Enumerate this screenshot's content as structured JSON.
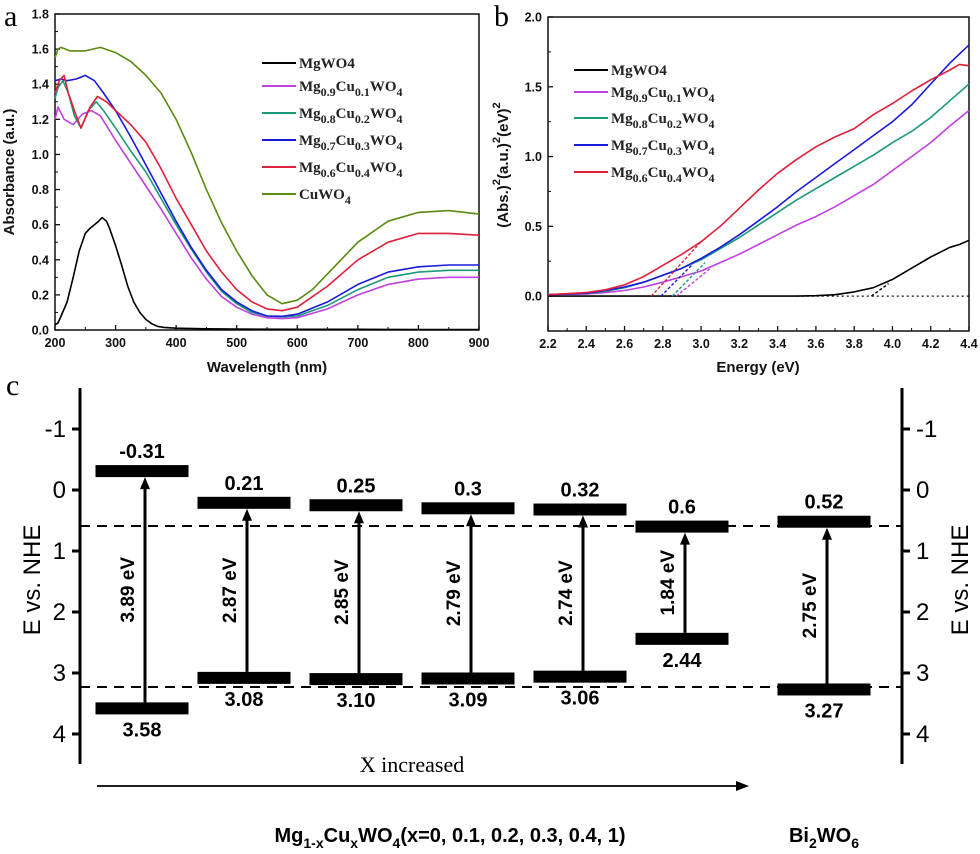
{
  "chart_data": [
    {
      "panel": "a",
      "type": "line",
      "xlabel": "Wavelength (nm)",
      "ylabel": "Absorbance (a.u.)",
      "xlim": [
        200,
        900
      ],
      "ylim": [
        0,
        1.8
      ],
      "xticks": [
        200,
        300,
        400,
        500,
        600,
        700,
        800,
        900
      ],
      "yticks": [
        "0.0",
        "0.2",
        "0.4",
        "0.6",
        "0.8",
        "1.0",
        "1.2",
        "1.4",
        "1.6",
        "1.8"
      ],
      "legend_position": "top-right",
      "series": [
        {
          "name": "MgWO4",
          "subscript": false,
          "color": "#000000",
          "x": [
            200,
            205,
            210,
            220,
            230,
            240,
            250,
            258,
            265,
            272,
            278,
            285,
            290,
            300,
            310,
            320,
            330,
            340,
            350,
            360,
            370,
            380,
            400,
            450,
            500,
            600,
            700,
            800,
            900
          ],
          "y": [
            0.03,
            0.04,
            0.08,
            0.16,
            0.3,
            0.45,
            0.55,
            0.58,
            0.6,
            0.62,
            0.64,
            0.62,
            0.58,
            0.48,
            0.37,
            0.25,
            0.16,
            0.1,
            0.06,
            0.035,
            0.02,
            0.015,
            0.01,
            0.007,
            0.005,
            0.004,
            0.004,
            0.003,
            0.003
          ]
        },
        {
          "name": "Mg0.9Cu0.1WO4",
          "subscript": true,
          "color": "#c040e0",
          "x": [
            200,
            205,
            215,
            230,
            245,
            260,
            275,
            300,
            325,
            350,
            375,
            400,
            425,
            450,
            475,
            500,
            525,
            550,
            575,
            600,
            650,
            700,
            750,
            800,
            850,
            900
          ],
          "y": [
            1.2,
            1.27,
            1.2,
            1.17,
            1.23,
            1.25,
            1.22,
            1.08,
            0.95,
            0.82,
            0.69,
            0.55,
            0.41,
            0.29,
            0.19,
            0.13,
            0.09,
            0.07,
            0.065,
            0.07,
            0.12,
            0.2,
            0.26,
            0.29,
            0.3,
            0.3
          ]
        },
        {
          "name": "Mg0.8Cu0.2WO4",
          "subscript": true,
          "color": "#1a9a7a",
          "x": [
            200,
            205,
            213,
            222,
            232,
            243,
            255,
            268,
            280,
            300,
            325,
            350,
            375,
            400,
            425,
            450,
            475,
            500,
            525,
            550,
            575,
            600,
            650,
            700,
            750,
            800,
            850,
            900
          ],
          "y": [
            1.32,
            1.38,
            1.42,
            1.35,
            1.22,
            1.15,
            1.25,
            1.3,
            1.25,
            1.15,
            1.02,
            0.9,
            0.75,
            0.6,
            0.46,
            0.33,
            0.22,
            0.15,
            0.1,
            0.08,
            0.075,
            0.08,
            0.14,
            0.23,
            0.3,
            0.33,
            0.34,
            0.34
          ]
        },
        {
          "name": "Mg0.7Cu0.3WO4",
          "subscript": true,
          "color": "#1a1adc",
          "x": [
            200,
            210,
            220,
            235,
            250,
            265,
            280,
            300,
            325,
            350,
            375,
            400,
            425,
            450,
            475,
            500,
            525,
            550,
            575,
            600,
            650,
            700,
            750,
            800,
            850,
            900
          ],
          "y": [
            1.42,
            1.43,
            1.42,
            1.43,
            1.45,
            1.42,
            1.35,
            1.25,
            1.1,
            0.94,
            0.78,
            0.62,
            0.47,
            0.34,
            0.23,
            0.16,
            0.11,
            0.08,
            0.078,
            0.09,
            0.16,
            0.26,
            0.33,
            0.36,
            0.37,
            0.37
          ]
        },
        {
          "name": "Mg0.6Cu0.4WO4",
          "subscript": true,
          "color": "#e0203a",
          "x": [
            200,
            207,
            215,
            222,
            232,
            243,
            258,
            270,
            285,
            300,
            325,
            350,
            375,
            400,
            425,
            450,
            475,
            500,
            525,
            550,
            575,
            600,
            650,
            700,
            750,
            800,
            850,
            900
          ],
          "y": [
            1.35,
            1.42,
            1.45,
            1.35,
            1.25,
            1.15,
            1.27,
            1.33,
            1.3,
            1.25,
            1.17,
            1.07,
            0.92,
            0.75,
            0.6,
            0.45,
            0.33,
            0.23,
            0.16,
            0.12,
            0.11,
            0.13,
            0.25,
            0.4,
            0.5,
            0.55,
            0.55,
            0.54
          ]
        },
        {
          "name": "CuWO4",
          "subscript": true,
          "color": "#5a8a10",
          "x": [
            200,
            205,
            210,
            225,
            250,
            275,
            300,
            325,
            350,
            375,
            400,
            425,
            450,
            475,
            500,
            525,
            550,
            575,
            600,
            625,
            650,
            700,
            750,
            800,
            850,
            900
          ],
          "y": [
            1.55,
            1.6,
            1.61,
            1.59,
            1.59,
            1.61,
            1.58,
            1.53,
            1.45,
            1.35,
            1.2,
            1.01,
            0.8,
            0.61,
            0.45,
            0.31,
            0.2,
            0.15,
            0.17,
            0.23,
            0.32,
            0.5,
            0.62,
            0.67,
            0.68,
            0.66
          ]
        }
      ]
    },
    {
      "panel": "b",
      "type": "line",
      "xlabel": "Energy (eV)",
      "ylabel": "(Abs.)2(a.u.)2(eV)2",
      "xlim": [
        2.2,
        4.4
      ],
      "ylim": [
        -0.25,
        2.0
      ],
      "xticks": [
        "2.2",
        "2.4",
        "2.6",
        "2.8",
        "3.0",
        "3.2",
        "3.4",
        "3.6",
        "3.8",
        "4.0",
        "4.2",
        "4.4"
      ],
      "yticks": [
        "0.0",
        "0.5",
        "1.0",
        "1.5",
        "2.0"
      ],
      "legend_position": "top-left",
      "baseline": {
        "y": 0,
        "x": [
          3.5,
          4.4
        ],
        "style": "dotted"
      },
      "series": [
        {
          "name": "MgWO4",
          "subscript": false,
          "color": "#000000",
          "x": [
            2.2,
            3.5,
            3.6,
            3.7,
            3.8,
            3.9,
            4.0,
            4.1,
            4.2,
            4.3,
            4.35,
            4.4
          ],
          "y": [
            0,
            0,
            0.003,
            0.01,
            0.03,
            0.06,
            0.12,
            0.2,
            0.28,
            0.35,
            0.37,
            0.4
          ],
          "tangent": {
            "x": [
              3.89,
              3.98
            ],
            "y": [
              0,
              0.09
            ]
          }
        },
        {
          "name": "Mg0.9Cu0.1WO4",
          "subscript": true,
          "color": "#c040e0",
          "x": [
            2.2,
            2.4,
            2.5,
            2.6,
            2.7,
            2.8,
            2.9,
            3.0,
            3.1,
            3.2,
            3.3,
            3.4,
            3.5,
            3.6,
            3.7,
            3.8,
            3.9,
            4.0,
            4.1,
            4.2,
            4.3,
            4.4
          ],
          "y": [
            0.01,
            0.015,
            0.025,
            0.04,
            0.065,
            0.1,
            0.14,
            0.18,
            0.24,
            0.3,
            0.37,
            0.44,
            0.51,
            0.57,
            0.64,
            0.72,
            0.8,
            0.9,
            1.0,
            1.1,
            1.22,
            1.33
          ],
          "tangent": {
            "x": [
              2.87,
              3.05
            ],
            "y": [
              0,
              0.2
            ]
          }
        },
        {
          "name": "Mg0.8Cu0.2WO4",
          "subscript": true,
          "color": "#1a9a7a",
          "x": [
            2.2,
            2.4,
            2.5,
            2.6,
            2.7,
            2.8,
            2.9,
            3.0,
            3.1,
            3.2,
            3.3,
            3.4,
            3.5,
            3.6,
            3.7,
            3.8,
            3.9,
            4.0,
            4.1,
            4.2,
            4.3,
            4.4
          ],
          "y": [
            0.01,
            0.02,
            0.035,
            0.06,
            0.1,
            0.15,
            0.2,
            0.26,
            0.34,
            0.42,
            0.51,
            0.6,
            0.69,
            0.77,
            0.85,
            0.93,
            1.01,
            1.1,
            1.18,
            1.28,
            1.4,
            1.52
          ],
          "tangent": {
            "x": [
              2.85,
              3.02
            ],
            "y": [
              0,
              0.24
            ]
          }
        },
        {
          "name": "Mg0.7Cu0.3WO4",
          "subscript": true,
          "color": "#1a1adc",
          "x": [
            2.2,
            2.4,
            2.5,
            2.6,
            2.7,
            2.8,
            2.9,
            3.0,
            3.1,
            3.2,
            3.3,
            3.4,
            3.5,
            3.6,
            3.7,
            3.8,
            3.9,
            4.0,
            4.1,
            4.2,
            4.3,
            4.4
          ],
          "y": [
            0.01,
            0.02,
            0.04,
            0.065,
            0.1,
            0.15,
            0.2,
            0.27,
            0.35,
            0.44,
            0.54,
            0.64,
            0.75,
            0.85,
            0.95,
            1.05,
            1.15,
            1.25,
            1.37,
            1.52,
            1.67,
            1.8
          ],
          "tangent": {
            "x": [
              2.79,
              2.95
            ],
            "y": [
              0,
              0.22
            ]
          }
        },
        {
          "name": "Mg0.6Cu0.4WO4",
          "subscript": true,
          "color": "#e0203a",
          "x": [
            2.2,
            2.4,
            2.5,
            2.6,
            2.7,
            2.8,
            2.9,
            3.0,
            3.1,
            3.2,
            3.3,
            3.4,
            3.5,
            3.6,
            3.7,
            3.8,
            3.9,
            4.0,
            4.1,
            4.2,
            4.3,
            4.35,
            4.4
          ],
          "y": [
            0.01,
            0.025,
            0.045,
            0.08,
            0.14,
            0.22,
            0.3,
            0.39,
            0.5,
            0.63,
            0.76,
            0.88,
            0.98,
            1.07,
            1.14,
            1.2,
            1.3,
            1.38,
            1.47,
            1.55,
            1.62,
            1.66,
            1.65
          ],
          "tangent": {
            "x": [
              2.74,
              3.0
            ],
            "y": [
              0,
              0.39
            ]
          }
        }
      ]
    },
    {
      "panel": "c",
      "type": "band-diagram",
      "ylabel": "E vs. NHE",
      "ylim": [
        -1.5,
        4.5
      ],
      "yaxis_inverted": true,
      "yticks": [
        "-1",
        "0",
        "1",
        "2",
        "3",
        "4"
      ],
      "reference_lines": [
        0.59,
        3.23
      ],
      "x_arrow_label": "X increased",
      "bands": [
        {
          "cb": -0.31,
          "cb_label": "-0.31",
          "vb": 3.58,
          "vb_label": "3.58",
          "gap": "3.89 eV"
        },
        {
          "cb": 0.21,
          "cb_label": "0.21",
          "vb": 3.08,
          "vb_label": "3.08",
          "gap": "2.87 eV"
        },
        {
          "cb": 0.25,
          "cb_label": "0.25",
          "vb": 3.1,
          "vb_label": "3.10",
          "gap": "2.85 eV"
        },
        {
          "cb": 0.3,
          "cb_label": "0.3",
          "vb": 3.09,
          "vb_label": "3.09",
          "gap": "2.79 eV"
        },
        {
          "cb": 0.32,
          "cb_label": "0.32",
          "vb": 3.06,
          "vb_label": "3.06",
          "gap": "2.74 eV"
        },
        {
          "cb": 0.6,
          "cb_label": "0.6",
          "vb": 2.44,
          "vb_label": "2.44",
          "gap": "1.84 eV"
        },
        {
          "cb": 0.52,
          "cb_label": "0.52",
          "vb": 3.27,
          "vb_label": "3.27",
          "gap": "2.75 eV"
        }
      ],
      "composition_label": [
        {
          "text": "Mg"
        },
        {
          "text": "1-x",
          "sub": true
        },
        {
          "text": "Cu"
        },
        {
          "text": "x",
          "sub": true
        },
        {
          "text": "WO"
        },
        {
          "text": "4",
          "sub": true
        },
        {
          "text": "(x=0, 0.1, 0.2, 0.3, 0.4, 1)"
        }
      ],
      "reference_label": [
        {
          "text": "Bi"
        },
        {
          "text": "2",
          "sub": true
        },
        {
          "text": "WO"
        },
        {
          "text": "6",
          "sub": true
        }
      ]
    }
  ],
  "panel_labels": {
    "a": "a",
    "b": "b",
    "c": "c"
  }
}
